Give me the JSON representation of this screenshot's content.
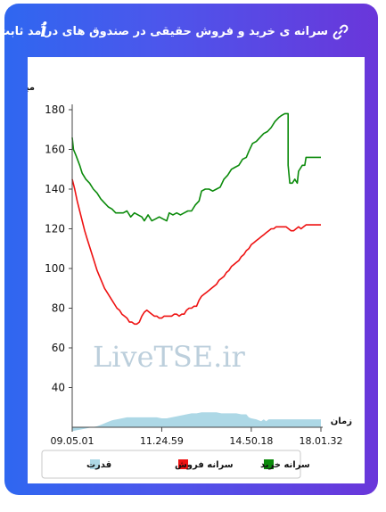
{
  "header": {
    "title": "سرانه ی خرید و فروش حقیقی در صندوق های درآمد ثابت",
    "link_icon": "link-icon",
    "info_icon": "info-icon",
    "info_symbol": "i"
  },
  "watermark": "LiveTSE.ir",
  "colors": {
    "buy": "#0a8a0a",
    "sell": "#ee1111",
    "power": "#add8e6"
  },
  "chart_data": {
    "type": "line",
    "ylabel": "میلیون تومان",
    "xlabel": "زمان",
    "ylim": [
      20,
      180
    ],
    "yticks": [
      40,
      60,
      80,
      100,
      120,
      140,
      160,
      180
    ],
    "xlim": [
      0,
      100
    ],
    "xticks": [
      {
        "x": 0,
        "label": "09.05.01"
      },
      {
        "x": 36,
        "label": "11.24.59"
      },
      {
        "x": 72,
        "label": "14.50.18"
      },
      {
        "x": 100,
        "label": "18.01.32"
      }
    ],
    "grid": false,
    "legend_position": "bottom",
    "legend": [
      {
        "name": "سرانه خرید",
        "color": "#0a8a0a"
      },
      {
        "name": "سرانه فروش",
        "color": "#ee1111"
      },
      {
        "name": "قدرت",
        "color": "#add8e6"
      }
    ],
    "series": [
      {
        "name": "سرانه خرید",
        "color": "#0a8a0a",
        "points": [
          [
            0,
            166
          ],
          [
            0.5,
            160
          ],
          [
            1.5,
            157
          ],
          [
            3,
            152
          ],
          [
            4,
            148
          ],
          [
            5.5,
            145
          ],
          [
            7,
            143
          ],
          [
            8.5,
            140
          ],
          [
            10,
            138
          ],
          [
            11.5,
            135
          ],
          [
            13,
            133
          ],
          [
            14.5,
            131
          ],
          [
            16,
            130
          ],
          [
            17.5,
            128
          ],
          [
            19,
            128
          ],
          [
            20.5,
            128
          ],
          [
            22,
            129
          ],
          [
            23.5,
            126
          ],
          [
            25,
            128
          ],
          [
            26.5,
            127
          ],
          [
            28,
            126
          ],
          [
            29,
            124
          ],
          [
            30.5,
            127
          ],
          [
            32,
            124
          ],
          [
            33.5,
            125
          ],
          [
            35,
            126
          ],
          [
            36.5,
            125
          ],
          [
            38,
            124
          ],
          [
            39,
            128
          ],
          [
            40.5,
            127
          ],
          [
            42,
            128
          ],
          [
            43.5,
            127
          ],
          [
            45,
            128
          ],
          [
            46.5,
            129
          ],
          [
            48,
            129
          ],
          [
            49.5,
            132
          ],
          [
            51,
            134
          ],
          [
            52,
            139
          ],
          [
            53.5,
            140
          ],
          [
            55,
            140
          ],
          [
            56.5,
            139
          ],
          [
            58,
            140
          ],
          [
            59.5,
            141
          ],
          [
            61,
            145
          ],
          [
            62.5,
            147
          ],
          [
            64,
            150
          ],
          [
            65.5,
            151
          ],
          [
            67,
            152
          ],
          [
            68.5,
            155
          ],
          [
            70,
            156
          ],
          [
            71,
            159
          ],
          [
            72.5,
            163
          ],
          [
            74,
            164
          ],
          [
            75.5,
            166
          ],
          [
            77,
            168
          ],
          [
            78.5,
            169
          ],
          [
            80,
            171
          ],
          [
            81.5,
            174
          ],
          [
            83,
            176
          ],
          [
            84,
            177
          ],
          [
            85.5,
            178
          ],
          [
            86.8,
            178
          ],
          [
            86.8,
            152
          ],
          [
            87.5,
            143
          ],
          [
            88.5,
            143
          ],
          [
            89.5,
            145
          ],
          [
            90.5,
            143
          ],
          [
            91,
            149
          ],
          [
            92.5,
            152
          ],
          [
            93.5,
            152
          ],
          [
            94,
            156
          ],
          [
            100,
            156
          ]
        ]
      },
      {
        "name": "سرانه فروش",
        "color": "#ee1111",
        "points": [
          [
            0,
            145
          ],
          [
            1,
            140
          ],
          [
            2,
            134
          ],
          [
            3,
            129
          ],
          [
            4,
            124
          ],
          [
            5,
            119
          ],
          [
            6,
            115
          ],
          [
            7,
            111
          ],
          [
            8,
            107
          ],
          [
            9,
            103
          ],
          [
            10,
            99
          ],
          [
            11,
            96
          ],
          [
            12,
            93
          ],
          [
            13,
            90
          ],
          [
            14,
            88
          ],
          [
            15,
            86
          ],
          [
            16,
            84
          ],
          [
            17,
            82
          ],
          [
            18,
            80
          ],
          [
            19,
            79
          ],
          [
            20,
            77
          ],
          [
            21,
            76
          ],
          [
            22,
            75
          ],
          [
            23,
            73
          ],
          [
            24,
            73
          ],
          [
            25,
            72
          ],
          [
            26,
            72
          ],
          [
            27,
            73
          ],
          [
            28,
            76
          ],
          [
            29,
            78
          ],
          [
            30,
            79
          ],
          [
            31,
            78
          ],
          [
            32,
            77
          ],
          [
            33,
            76
          ],
          [
            34,
            76
          ],
          [
            35,
            75
          ],
          [
            36,
            75
          ],
          [
            37,
            76
          ],
          [
            38,
            76
          ],
          [
            39,
            76
          ],
          [
            40,
            76
          ],
          [
            41,
            77
          ],
          [
            42,
            77
          ],
          [
            43,
            76
          ],
          [
            44,
            77
          ],
          [
            45,
            77
          ],
          [
            46,
            79
          ],
          [
            47,
            80
          ],
          [
            48,
            80
          ],
          [
            49,
            81
          ],
          [
            50,
            81
          ],
          [
            51,
            84
          ],
          [
            52,
            86
          ],
          [
            53,
            87
          ],
          [
            54,
            88
          ],
          [
            55,
            89
          ],
          [
            56,
            90
          ],
          [
            57,
            91
          ],
          [
            58,
            92
          ],
          [
            59,
            94
          ],
          [
            60,
            95
          ],
          [
            61,
            96
          ],
          [
            62,
            98
          ],
          [
            63,
            99
          ],
          [
            64,
            101
          ],
          [
            65,
            102
          ],
          [
            66,
            103
          ],
          [
            67,
            104
          ],
          [
            68,
            106
          ],
          [
            69,
            107
          ],
          [
            70,
            109
          ],
          [
            71,
            110
          ],
          [
            72,
            112
          ],
          [
            73,
            113
          ],
          [
            74,
            114
          ],
          [
            75,
            115
          ],
          [
            76,
            116
          ],
          [
            77,
            117
          ],
          [
            78,
            118
          ],
          [
            79,
            119
          ],
          [
            80,
            120
          ],
          [
            81,
            120
          ],
          [
            82,
            121
          ],
          [
            83,
            121
          ],
          [
            84,
            121
          ],
          [
            85,
            121
          ],
          [
            86,
            121
          ],
          [
            87,
            120
          ],
          [
            88,
            119
          ],
          [
            89,
            119
          ],
          [
            90,
            120
          ],
          [
            91,
            121
          ],
          [
            92,
            120
          ],
          [
            93,
            121
          ],
          [
            94,
            122
          ],
          [
            100,
            122
          ]
        ]
      },
      {
        "name": "قدرت",
        "color": "#add8e6",
        "type": "area",
        "points": [
          [
            0,
            18
          ],
          [
            2,
            18.5
          ],
          [
            4,
            19
          ],
          [
            6,
            19.5
          ],
          [
            8,
            20
          ],
          [
            10,
            20.5
          ],
          [
            12,
            21.5
          ],
          [
            14,
            22.5
          ],
          [
            16,
            23.5
          ],
          [
            18,
            24
          ],
          [
            20,
            24.5
          ],
          [
            22,
            25
          ],
          [
            24,
            25
          ],
          [
            26,
            25
          ],
          [
            28,
            25
          ],
          [
            30,
            25
          ],
          [
            32,
            25
          ],
          [
            34,
            25
          ],
          [
            36,
            24.5
          ],
          [
            38,
            24.5
          ],
          [
            40,
            25
          ],
          [
            42,
            25.5
          ],
          [
            44,
            26
          ],
          [
            46,
            26.5
          ],
          [
            48,
            27
          ],
          [
            50,
            27
          ],
          [
            52,
            27.5
          ],
          [
            54,
            27.5
          ],
          [
            56,
            27.5
          ],
          [
            58,
            27.5
          ],
          [
            60,
            27
          ],
          [
            62,
            27
          ],
          [
            64,
            27
          ],
          [
            66,
            27
          ],
          [
            68,
            26.5
          ],
          [
            70,
            26.5
          ],
          [
            71,
            25
          ],
          [
            72,
            24.5
          ],
          [
            74,
            24
          ],
          [
            75,
            23.5
          ],
          [
            76,
            23
          ],
          [
            77,
            24
          ],
          [
            78,
            23
          ],
          [
            79,
            24
          ],
          [
            80,
            24
          ],
          [
            100,
            24
          ]
        ]
      }
    ]
  }
}
